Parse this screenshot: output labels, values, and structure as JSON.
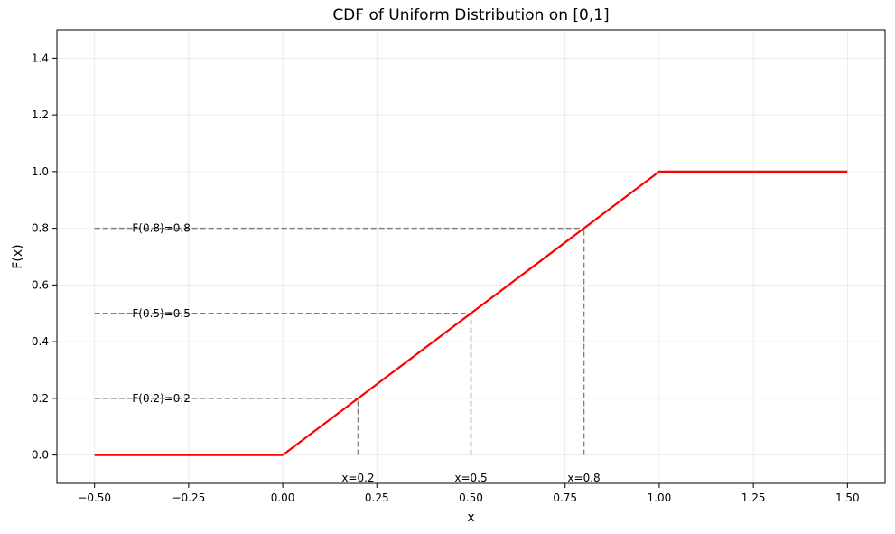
{
  "chart_data": {
    "type": "line",
    "title": "CDF of Uniform Distribution on [0,1]",
    "xlabel": "x",
    "ylabel": "F(x)",
    "xlim": [
      -0.6,
      1.6
    ],
    "ylim": [
      -0.1,
      1.5
    ],
    "xticks": [
      -0.5,
      -0.25,
      0.0,
      0.25,
      0.5,
      0.75,
      1.0,
      1.25,
      1.5
    ],
    "xtick_labels": [
      "−0.50",
      "−0.25",
      "0.00",
      "0.25",
      "0.50",
      "0.75",
      "1.00",
      "1.25",
      "1.50"
    ],
    "yticks": [
      0.0,
      0.2,
      0.4,
      0.6,
      0.8,
      1.0,
      1.2,
      1.4
    ],
    "ytick_labels": [
      "0.0",
      "0.2",
      "0.4",
      "0.6",
      "0.8",
      "1.0",
      "1.2",
      "1.4"
    ],
    "grid": true,
    "series": [
      {
        "color": "#ff0000",
        "x": [
          -0.5,
          0.0,
          1.0,
          1.5
        ],
        "y": [
          0.0,
          0.0,
          1.0,
          1.0
        ]
      }
    ],
    "reference_points": [
      {
        "x": 0.2,
        "y": 0.2,
        "x_label": "x=0.2",
        "y_label": "F(0.2)=0.2"
      },
      {
        "x": 0.5,
        "y": 0.5,
        "x_label": "x=0.5",
        "y_label": "F(0.5)=0.5"
      },
      {
        "x": 0.8,
        "y": 0.8,
        "x_label": "x=0.8",
        "y_label": "F(0.8)=0.8"
      }
    ],
    "reference_line_color": "#808080"
  }
}
